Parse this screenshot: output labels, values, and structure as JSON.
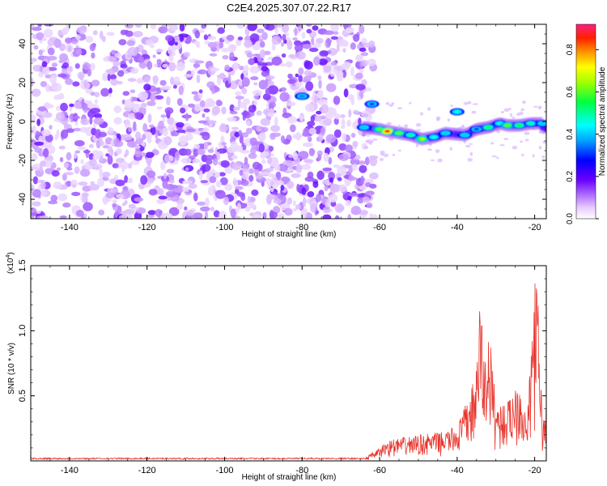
{
  "title": "C2E4.2025.307.07.22.R17",
  "chart_data": [
    {
      "type": "heatmap",
      "xlabel": "Height of straight line (km)",
      "ylabel": "Frequency (Hz)",
      "xlim": [
        -150,
        -17
      ],
      "ylim": [
        -50,
        50
      ],
      "xticks": [
        -140,
        -120,
        -100,
        -80,
        -60,
        -40,
        -20
      ],
      "yticks": [
        -40,
        -20,
        0,
        20,
        40
      ],
      "colorbar": {
        "label": "Normalized spectral amplitude",
        "range": [
          0,
          0.92
        ],
        "ticks": [
          0.0,
          0.2,
          0.4,
          0.6,
          0.8
        ]
      },
      "noise_region_x": [
        -150,
        -63
      ],
      "signal_track": [
        {
          "x": -64,
          "y": -3,
          "value": 0.4
        },
        {
          "x": -60,
          "y": -4,
          "value": 0.6
        },
        {
          "x": -58,
          "y": -5,
          "value": 0.85
        },
        {
          "x": -55,
          "y": -6,
          "value": 0.6
        },
        {
          "x": -52,
          "y": -7,
          "value": 0.5
        },
        {
          "x": -49,
          "y": -9,
          "value": 0.65
        },
        {
          "x": -46,
          "y": -8,
          "value": 0.45
        },
        {
          "x": -43,
          "y": -6,
          "value": 0.4
        },
        {
          "x": -40,
          "y": 5,
          "value": 0.45
        },
        {
          "x": -38,
          "y": -7,
          "value": 0.4
        },
        {
          "x": -35,
          "y": -4,
          "value": 0.3
        },
        {
          "x": -32,
          "y": -3,
          "value": 0.55
        },
        {
          "x": -29,
          "y": -1,
          "value": 0.45
        },
        {
          "x": -27,
          "y": -2,
          "value": 0.6
        },
        {
          "x": -24,
          "y": -2,
          "value": 0.55
        },
        {
          "x": -21,
          "y": -1,
          "value": 0.5
        },
        {
          "x": -18,
          "y": -1,
          "value": 0.4
        },
        {
          "x": -80,
          "y": 13,
          "value": 0.35
        },
        {
          "x": -62,
          "y": 9,
          "value": 0.3
        }
      ]
    },
    {
      "type": "line",
      "xlabel": "Height of straight line (km)",
      "ylabel": "SNR (10 * v/v)",
      "scale_label": "(x10",
      "scale_exponent": "4",
      "scale_close": ")",
      "xlim": [
        -150,
        -17
      ],
      "ylim": [
        0,
        1.5
      ],
      "xticks": [
        -140,
        -120,
        -100,
        -80,
        -60,
        -40,
        -20
      ],
      "yticks": [
        0.5,
        1.0,
        1.5
      ],
      "ytick_labels": [
        "0.5",
        "1.0",
        "1.5"
      ],
      "series": [
        {
          "name": "SNR",
          "color": "#e8342c",
          "envelope": [
            {
              "x": -150,
              "y": 0.02
            },
            {
              "x": -64,
              "y": 0.02
            },
            {
              "x": -60,
              "y": 0.1
            },
            {
              "x": -58,
              "y": 0.16
            },
            {
              "x": -50,
              "y": 0.2
            },
            {
              "x": -44,
              "y": 0.22
            },
            {
              "x": -40,
              "y": 0.27
            },
            {
              "x": -37,
              "y": 0.5
            },
            {
              "x": -35,
              "y": 0.7
            },
            {
              "x": -34,
              "y": 1.37
            },
            {
              "x": -33,
              "y": 0.75
            },
            {
              "x": -32,
              "y": 1.05
            },
            {
              "x": -31,
              "y": 0.8
            },
            {
              "x": -30,
              "y": 0.45
            },
            {
              "x": -27,
              "y": 0.45
            },
            {
              "x": -24,
              "y": 0.68
            },
            {
              "x": -22,
              "y": 0.3
            },
            {
              "x": -21,
              "y": 0.8
            },
            {
              "x": -20,
              "y": 1.5
            },
            {
              "x": -19,
              "y": 1.2
            },
            {
              "x": -18,
              "y": 0.3
            },
            {
              "x": -17,
              "y": 0.42
            }
          ]
        }
      ]
    }
  ]
}
